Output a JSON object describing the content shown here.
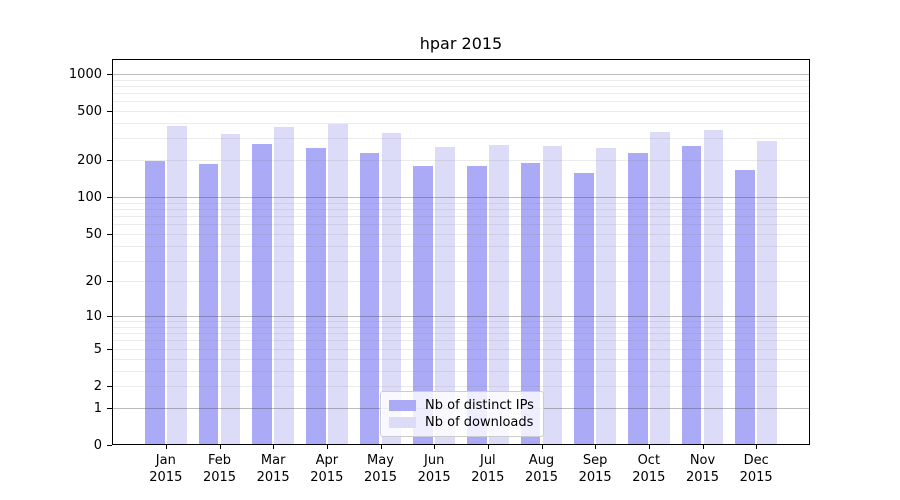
{
  "title": "hpar 2015",
  "chart_data": {
    "type": "bar",
    "title": "hpar 2015",
    "months": [
      "Jan",
      "Feb",
      "Mar",
      "Apr",
      "May",
      "Jun",
      "Jul",
      "Aug",
      "Sep",
      "Oct",
      "Nov",
      "Dec"
    ],
    "year": "2015",
    "categories": [
      "Jan 2015",
      "Feb 2015",
      "Mar 2015",
      "Apr 2015",
      "May 2015",
      "Jun 2015",
      "Jul 2015",
      "Aug 2015",
      "Sep 2015",
      "Oct 2015",
      "Nov 2015",
      "Dec 2015"
    ],
    "series": [
      {
        "name": "Nb of distinct IPs",
        "color": "#aaaaf7",
        "values": [
          196,
          186,
          271,
          253,
          227,
          180,
          178,
          190,
          157,
          229,
          259,
          166
        ]
      },
      {
        "name": "Nb of downloads",
        "color": "#dcdcf9",
        "values": [
          376,
          325,
          371,
          392,
          330,
          255,
          265,
          262,
          250,
          340,
          348,
          288
        ]
      }
    ],
    "y_scale": "log10(1+y)",
    "ylim": [
      0,
      1320
    ],
    "y_ticks": [
      0,
      1,
      2,
      5,
      10,
      20,
      50,
      100,
      200,
      500,
      1000
    ],
    "y_major_gridlines": [
      1,
      10,
      100,
      1000
    ],
    "y_minor_gridlines": [
      2,
      3,
      4,
      5,
      6,
      7,
      8,
      9,
      20,
      30,
      40,
      50,
      60,
      70,
      80,
      90,
      200,
      300,
      400,
      500,
      600,
      700,
      800,
      900
    ],
    "xlabel": "",
    "ylabel": "",
    "grid": "on",
    "legend_position": "bottom-center"
  },
  "colors": {
    "background": "#ffffff",
    "axis": "#000000",
    "grid_major": "rgba(70,70,70,0.36)",
    "grid_minor": "rgba(130,130,130,0.16)",
    "legend_border": "#cccccc"
  }
}
